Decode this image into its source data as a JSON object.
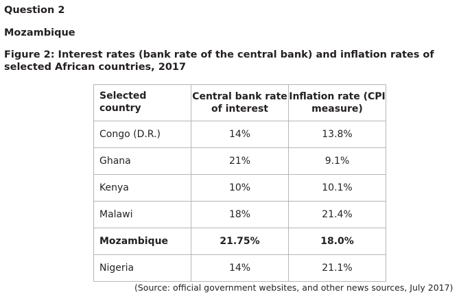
{
  "question": "Question 2",
  "country": "Mozambique",
  "figure_caption": "Figure 2: Interest rates (bank rate of the central bank) and inflation rates of selected African countries, 2017",
  "table": {
    "headers": [
      "Selected country",
      "Central bank rate of interest",
      "Inflation rate (CPI measure)"
    ],
    "rows": [
      {
        "country": "Congo (D.R.)",
        "rate": "14%",
        "inflation": "13.8%"
      },
      {
        "country": "Ghana",
        "rate": "21%",
        "inflation": "9.1%"
      },
      {
        "country": "Kenya",
        "rate": "10%",
        "inflation": "10.1%"
      },
      {
        "country": "Malawi",
        "rate": "18%",
        "inflation": "21.4%"
      },
      {
        "country": "Mozambique",
        "rate": "21.75%",
        "inflation": "18.0%"
      },
      {
        "country": "Nigeria",
        "rate": "14%",
        "inflation": "21.1%"
      }
    ]
  },
  "source": "(Source: official government websites, and other news sources, July 2017)"
}
